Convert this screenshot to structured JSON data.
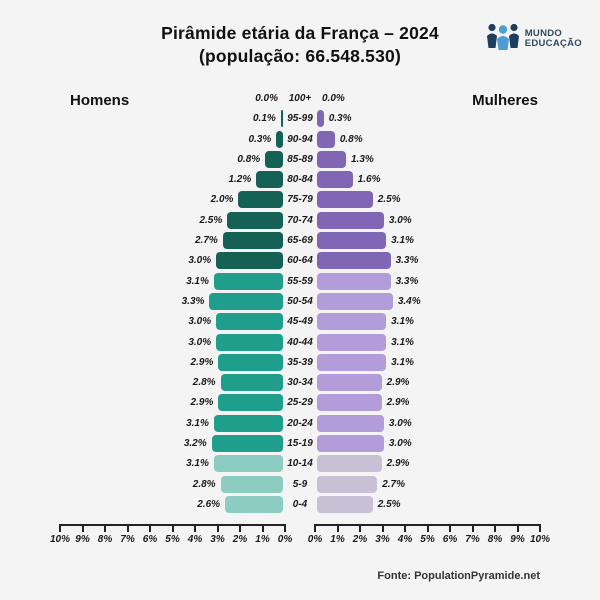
{
  "page": {
    "background": "#f4f4f4"
  },
  "header": {
    "title_line1": "Pirâmide etária da França – 2024",
    "title_line2": "(população: 66.548.530)"
  },
  "logo": {
    "line1": "MUNDO",
    "line2": "EDUCAÇÃO",
    "icon": "people-icon",
    "colors": {
      "dark_person": "#1f3d5c",
      "light_person": "#4e9cd4",
      "text": "#2b4a63"
    }
  },
  "side_labels": {
    "left": "Homens",
    "right": "Mulheres"
  },
  "footer": {
    "source": "Fonte: PopulationPyramide.net"
  },
  "chart_data": {
    "type": "bar",
    "subtype": "population-pyramid",
    "title": "Pirâmide etária da França – 2024",
    "subtitle": "(população: 66.548.530)",
    "unit": "%",
    "xlim": [
      0,
      10
    ],
    "categories": [
      "100+",
      "95-99",
      "90-94",
      "85-89",
      "80-84",
      "75-79",
      "70-74",
      "65-69",
      "60-64",
      "55-59",
      "50-54",
      "45-49",
      "40-44",
      "35-39",
      "30-34",
      "25-29",
      "20-24",
      "15-19",
      "10-14",
      "5-9",
      "0-4"
    ],
    "series": [
      {
        "name": "Homens",
        "side": "left",
        "values": [
          0.0,
          0.1,
          0.3,
          0.8,
          1.2,
          2.0,
          2.5,
          2.7,
          3.0,
          3.1,
          3.3,
          3.0,
          3.0,
          2.9,
          2.8,
          2.9,
          3.1,
          3.2,
          3.1,
          2.8,
          2.6
        ]
      },
      {
        "name": "Mulheres",
        "side": "right",
        "values": [
          0.0,
          0.3,
          0.8,
          1.3,
          1.6,
          2.5,
          3.0,
          3.1,
          3.3,
          3.3,
          3.4,
          3.1,
          3.1,
          3.1,
          2.9,
          2.9,
          3.0,
          3.0,
          2.9,
          2.7,
          2.5
        ]
      }
    ],
    "bands": [
      "old",
      "old",
      "old",
      "old",
      "old",
      "old",
      "old",
      "old",
      "old",
      "adult",
      "adult",
      "adult",
      "adult",
      "adult",
      "adult",
      "adult",
      "adult",
      "adult",
      "child",
      "child",
      "child"
    ],
    "colors": {
      "male": {
        "old": "#166156",
        "adult": "#1f9e8c",
        "child": "#8dcdc1"
      },
      "female": {
        "old": "#8266b6",
        "adult": "#b39cda",
        "child": "#c8c1d6"
      }
    },
    "axis_ticks_left": [
      "10%",
      "9%",
      "8%",
      "7%",
      "6%",
      "5%",
      "4%",
      "3%",
      "2%",
      "1%",
      "0%"
    ],
    "axis_ticks_right": [
      "0%",
      "1%",
      "2%",
      "3%",
      "4%",
      "5%",
      "6%",
      "7%",
      "8%",
      "9%",
      "10%"
    ],
    "legend_position": "none",
    "grid": false
  }
}
